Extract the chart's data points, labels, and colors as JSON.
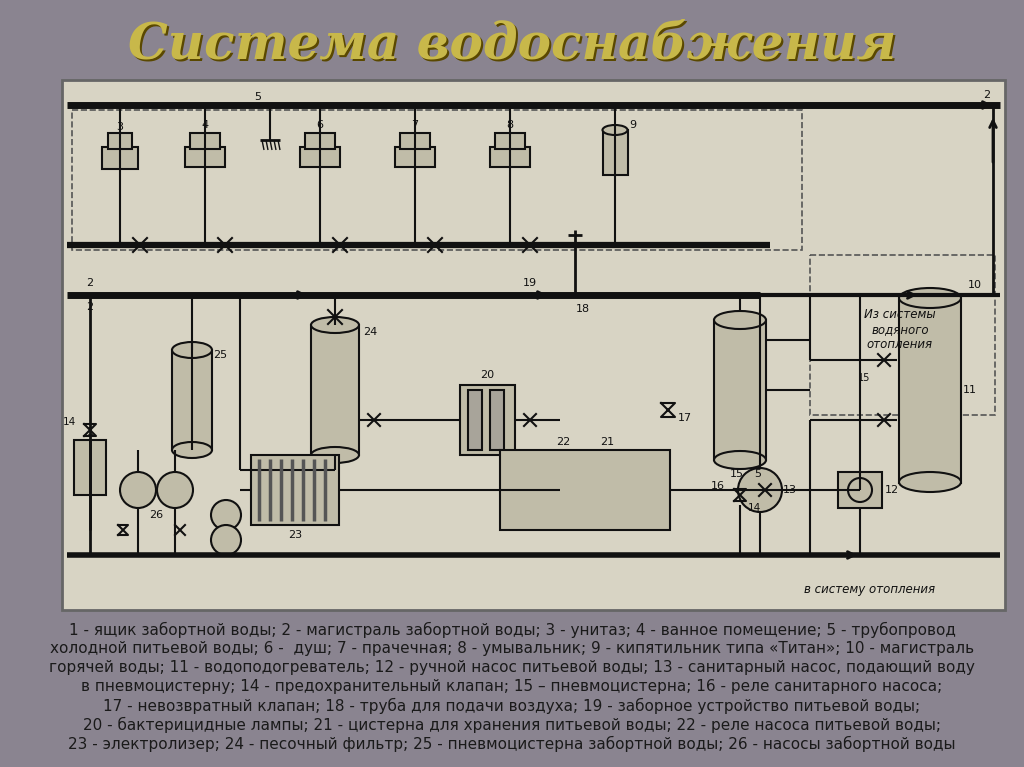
{
  "title": "Система водоснабжения",
  "title_color": "#C8B84A",
  "title_shadow_color": "#5A4800",
  "bg_color": "#8A8490",
  "diagram_bg": "#D8D4C4",
  "legend_lines": [
    "1 - ящик забортной воды; 2 - магистраль забортной воды; 3 - унитаз; 4 - ванное помещение; 5 - трубопровод",
    "холодной питьевой воды; 6 -  душ; 7 - прачечная; 8 - умывальник; 9 - кипятильник типа «Титан»; 10 - магистраль",
    "горячей воды; 11 - водоподогреватель; 12 - ручной насос питьевой воды; 13 - санитарный насос, подающий воду",
    "в пневмоцистерну; 14 - предохранительный клапан; 15 – пневмоцистерна; 16 - реле санитарного насоса;",
    "17 - невозвратный клапан; 18 - труба для подачи воздуха; 19 - заборное устройство питьевой воды;",
    "20 - бактерицидные лампы; 21 - цистерна для хранения питьевой воды; 22 - реле насоса питьевой воды;",
    "23 - электролизер; 24 - песочный фильтр; 25 - пневмоцистерна забортной воды; 26 - насосы забортной воды"
  ],
  "legend_color": "#1a1a1a",
  "legend_fontsize": 11.0,
  "diagram_label_bottom_right": "в систему отопления",
  "diagram_label_top_right": "Из системы\nводяного\nотопления"
}
